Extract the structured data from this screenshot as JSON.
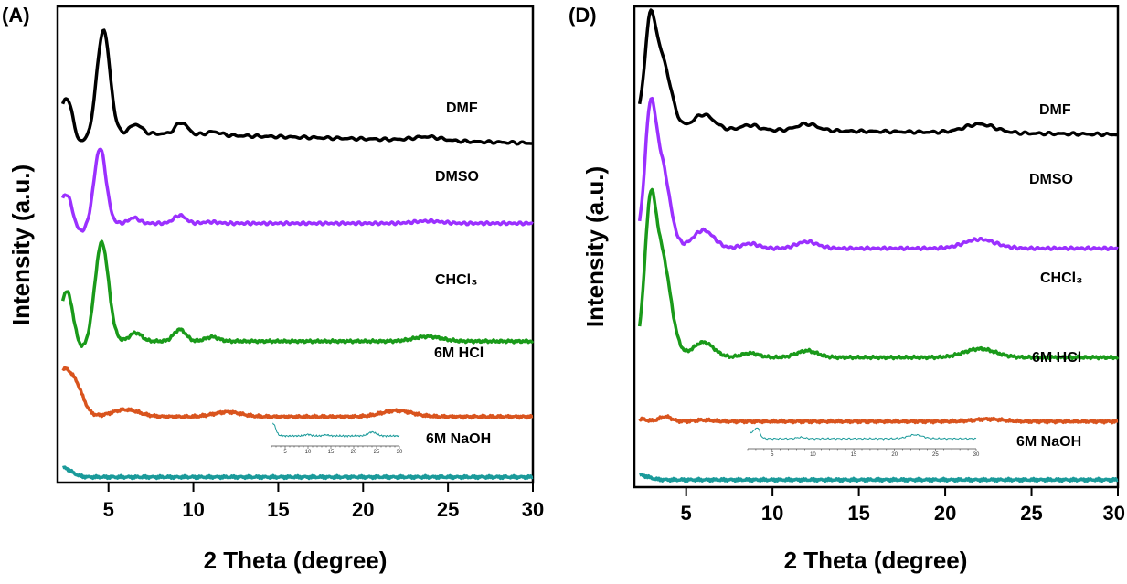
{
  "chart_data": [
    {
      "type": "line",
      "panel_label": "(A)",
      "xlabel": "2 Theta (degree)",
      "ylabel": "Intensity (a.u.)",
      "xlim": [
        2,
        30
      ],
      "ylim": [
        0,
        100
      ],
      "xticks": [
        5,
        10,
        15,
        20,
        25,
        30
      ],
      "xtick_labels": [
        "5",
        "10",
        "15",
        "20",
        "25",
        "30"
      ],
      "series": [
        {
          "name": "DMF",
          "color": "#000000",
          "baseline": 73,
          "end_baseline": 71,
          "start_x": 2.3,
          "start_y": 3,
          "start_width": 0.6,
          "low_angle_dip": true,
          "peaks": [
            {
              "x": 2.6,
              "height": 6,
              "width": 0.3
            },
            {
              "x": 4.7,
              "height": 22,
              "width": 0.38
            },
            {
              "x": 6.6,
              "height": 2,
              "width": 0.35
            },
            {
              "x": 9.3,
              "height": 2.5,
              "width": 0.35
            },
            {
              "x": 11.2,
              "height": 0.7,
              "width": 0.4
            },
            {
              "x": 23.8,
              "height": 0.8,
              "width": 0.8
            }
          ]
        },
        {
          "name": "DMSO",
          "color": "#9b30ff",
          "baseline": 54,
          "end_baseline": 54,
          "start_x": 2.3,
          "start_y": 3,
          "start_width": 0.6,
          "low_angle_dip": true,
          "peaks": [
            {
              "x": 2.6,
              "height": 4.5,
              "width": 0.3
            },
            {
              "x": 4.5,
              "height": 16,
              "width": 0.35
            },
            {
              "x": 6.5,
              "height": 1.2,
              "width": 0.3
            },
            {
              "x": 9.2,
              "height": 1.7,
              "width": 0.35
            },
            {
              "x": 11.0,
              "height": 0.3,
              "width": 0.4
            },
            {
              "x": 23.8,
              "height": 0.5,
              "width": 0.8
            }
          ]
        },
        {
          "name": "CHCl₃",
          "color": "#1a9a1a",
          "baseline": 29,
          "end_baseline": 29,
          "start_x": 2.3,
          "start_y": 3,
          "start_width": 0.6,
          "low_angle_dip": true,
          "peaks": [
            {
              "x": 2.6,
              "height": 9,
              "width": 0.35
            },
            {
              "x": 4.6,
              "height": 21,
              "width": 0.4
            },
            {
              "x": 6.6,
              "height": 1.8,
              "width": 0.35
            },
            {
              "x": 9.2,
              "height": 2.5,
              "width": 0.35
            },
            {
              "x": 11.1,
              "height": 0.9,
              "width": 0.4
            },
            {
              "x": 23.8,
              "height": 1.0,
              "width": 0.8
            }
          ]
        },
        {
          "name": "6M HCl",
          "color": "#d9541e",
          "baseline": 13,
          "end_baseline": 13,
          "start_x": 2.3,
          "start_y": 10,
          "start_width": 0.7,
          "low_angle_dip": false,
          "peaks": [
            {
              "x": 3.2,
              "height": 2.5,
              "width": 0.4
            },
            {
              "x": 6.0,
              "height": 1.5,
              "width": 0.8
            },
            {
              "x": 12.0,
              "height": 1.0,
              "width": 0.8
            },
            {
              "x": 22.0,
              "height": 1.3,
              "width": 0.9
            }
          ]
        },
        {
          "name": "6M NaOH",
          "color": "#1a9a9a",
          "baseline": 0.2,
          "end_baseline": 0.2,
          "start_x": 2.3,
          "start_y": 2,
          "start_width": 0.5,
          "low_angle_dip": false,
          "peaks": []
        }
      ],
      "inset": {
        "series_name": "6M NaOH",
        "xlim": [
          2,
          30
        ],
        "tick_labels": [
          "5",
          "10",
          "15",
          "20",
          "25",
          "30"
        ],
        "color": "#1a9a9a",
        "peaks": [
          {
            "x": 10,
            "height": 0.12,
            "width": 0.6
          },
          {
            "x": 14,
            "height": 0.08,
            "width": 0.6
          },
          {
            "x": 24,
            "height": 0.3,
            "width": 0.9
          }
        ],
        "start_height": 1.0
      }
    },
    {
      "type": "line",
      "panel_label": "(D)",
      "xlabel": "2 Theta (degree)",
      "ylabel": "Intensity (a.u.)",
      "xlim": [
        2,
        30
      ],
      "ylim": [
        0,
        100
      ],
      "xticks": [
        5,
        10,
        15,
        20,
        25,
        30
      ],
      "xtick_labels": [
        "5",
        "10",
        "15",
        "20",
        "25",
        "30"
      ],
      "series": [
        {
          "name": "DMF",
          "color": "#000000",
          "baseline": 74,
          "end_baseline": 73,
          "start_x": 2.3,
          "start_y": 2,
          "start_width": 0.6,
          "low_angle_dip": true,
          "peaks": [
            {
              "x": 2.9,
              "height": 16,
              "width": 0.3
            },
            {
              "x": 3.5,
              "height": 17,
              "width": 0.55
            },
            {
              "x": 6.0,
              "height": 3.2,
              "width": 0.6
            },
            {
              "x": 8.7,
              "height": 1.0,
              "width": 0.5
            },
            {
              "x": 12.0,
              "height": 1.4,
              "width": 0.6
            },
            {
              "x": 22.0,
              "height": 1.8,
              "width": 0.9
            }
          ]
        },
        {
          "name": "DMSO",
          "color": "#9b30ff",
          "baseline": 49,
          "end_baseline": 49,
          "start_x": 2.3,
          "start_y": 2,
          "start_width": 0.6,
          "low_angle_dip": true,
          "peaks": [
            {
              "x": 2.9,
              "height": 22,
              "width": 0.3
            },
            {
              "x": 3.5,
              "height": 20,
              "width": 0.5
            },
            {
              "x": 6.0,
              "height": 3.8,
              "width": 0.6
            },
            {
              "x": 8.7,
              "height": 1.0,
              "width": 0.5
            },
            {
              "x": 12.0,
              "height": 1.4,
              "width": 0.6
            },
            {
              "x": 22.0,
              "height": 1.9,
              "width": 0.9
            }
          ]
        },
        {
          "name": "CHCl₃",
          "color": "#1a9a1a",
          "baseline": 26,
          "end_baseline": 26,
          "start_x": 2.3,
          "start_y": 2,
          "start_width": 0.6,
          "low_angle_dip": true,
          "peaks": [
            {
              "x": 2.9,
              "height": 22,
              "width": 0.3
            },
            {
              "x": 3.5,
              "height": 24,
              "width": 0.55
            },
            {
              "x": 6.0,
              "height": 3.2,
              "width": 0.6
            },
            {
              "x": 8.7,
              "height": 0.9,
              "width": 0.5
            },
            {
              "x": 12.0,
              "height": 1.4,
              "width": 0.6
            },
            {
              "x": 22.0,
              "height": 1.8,
              "width": 0.9
            }
          ]
        },
        {
          "name": "6M HCl",
          "color": "#d9541e",
          "baseline": 12.5,
          "end_baseline": 12.5,
          "start_x": 2.3,
          "start_y": 0.5,
          "start_width": 0.4,
          "low_angle_dip": false,
          "peaks": [
            {
              "x": 3.8,
              "height": 1.0,
              "width": 0.35
            },
            {
              "x": 6.0,
              "height": 0.3,
              "width": 0.5
            },
            {
              "x": 22.5,
              "height": 0.5,
              "width": 0.8
            }
          ]
        },
        {
          "name": "6M NaOH",
          "color": "#1a9a9a",
          "baseline": 0.2,
          "end_baseline": 0.2,
          "start_x": 2.3,
          "start_y": 1,
          "start_width": 0.5,
          "low_angle_dip": false,
          "peaks": []
        }
      ],
      "inset": {
        "series_name": "6M NaOH",
        "xlim": [
          2,
          30
        ],
        "tick_labels": [
          "5",
          "10",
          "15",
          "20",
          "25",
          "30"
        ],
        "color": "#1a9a9a",
        "peaks": [
          {
            "x": 3.2,
            "height": 0.7,
            "width": 0.3
          },
          {
            "x": 8.5,
            "height": 0.1,
            "width": 0.5
          },
          {
            "x": 22.5,
            "height": 0.3,
            "width": 0.9
          }
        ],
        "start_height": 0.5
      }
    }
  ]
}
